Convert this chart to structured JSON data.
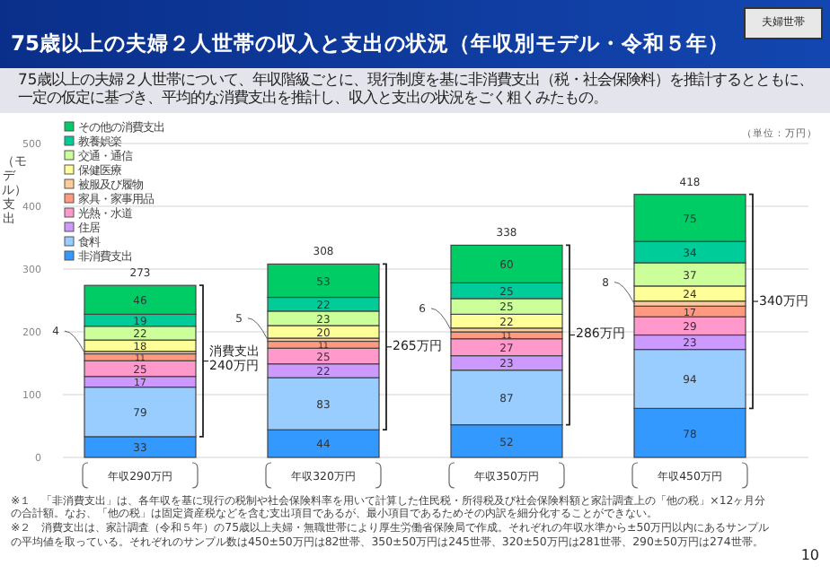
{
  "chart_data": {
    "type": "bar",
    "stacked": true,
    "title": "75歳以上の夫婦２人世帯の収入と支出の状況（年収別モデル・令和５年）",
    "subtitle": "75歳以上の夫婦２人世帯について、年収階級ごとに、現行制度を基に非消費支出（税・社会保険料）を推計するとともに、一定の仮定に基づき、平均的な消費支出を推計し、収入と支出の状況をごく粗くみたもの。",
    "ylabel": "（モデル）支出",
    "categories": [
      "年収290万円",
      "年収320万円",
      "年収350万円",
      "年収450万円"
    ],
    "series": [
      {
        "name": "非消費支出",
        "color": "#3399ff",
        "values": [
          33,
          44,
          52,
          78
        ]
      },
      {
        "name": "食料",
        "color": "#99ccff",
        "values": [
          79,
          83,
          87,
          94
        ]
      },
      {
        "name": "住居",
        "color": "#cc99ff",
        "values": [
          17,
          22,
          23,
          23
        ]
      },
      {
        "name": "光熱・水道",
        "color": "#ff99cc",
        "values": [
          25,
          25,
          27,
          29
        ]
      },
      {
        "name": "家具・家事用品",
        "color": "#ff9980",
        "values": [
          11,
          11,
          11,
          17
        ]
      },
      {
        "name": "被服及び履物",
        "color": "#ffcc99",
        "values": [
          4,
          5,
          6,
          8
        ]
      },
      {
        "name": "保健医療",
        "color": "#ffff99",
        "values": [
          18,
          20,
          22,
          24
        ]
      },
      {
        "name": "交通・通信",
        "color": "#ccff99",
        "values": [
          22,
          23,
          25,
          37
        ]
      },
      {
        "name": "教養娯楽",
        "color": "#00cc99",
        "values": [
          19,
          22,
          25,
          34
        ]
      },
      {
        "name": "その他の消費支出",
        "color": "#00cc66",
        "values": [
          46,
          53,
          60,
          75
        ]
      }
    ],
    "ylim": [
      0,
      500
    ],
    "yticks": [
      0,
      100,
      200,
      300,
      400,
      500
    ],
    "grid": "y",
    "legend": "top left",
    "data_labels": true,
    "totals": [
      "273",
      "308",
      "338",
      "418"
    ],
    "annotations": [
      "消費支出240万円",
      "265万円",
      "286万円",
      "340万円",
      "（単位：万円）",
      "夫婦世帯",
      "※１　「非消費支出」は、各年収を基に現行の税制や社会保険料率を用いて計算した住民税・所得税及び社会保険料額と家計調査上の「他の税」×12ヶ月分の合計額。なお、「他の税」は固定資産税などを含む支出項目であるが、最小項目であるためその内訳を細分化することができない。",
      "※２　消費支出は、家計調査（令和５年）の75歳以上夫婦・無職世帯により厚生労働省保険局で作成。それぞれの年収水準から±50万円以内にあるサンプルの平均値を取っている。それぞれのサンプル数は450±50万円は82世帯、350±50万円は245世帯、320±50万円は281世帯、290±50万円は274世帯。",
      "10"
    ]
  }
}
